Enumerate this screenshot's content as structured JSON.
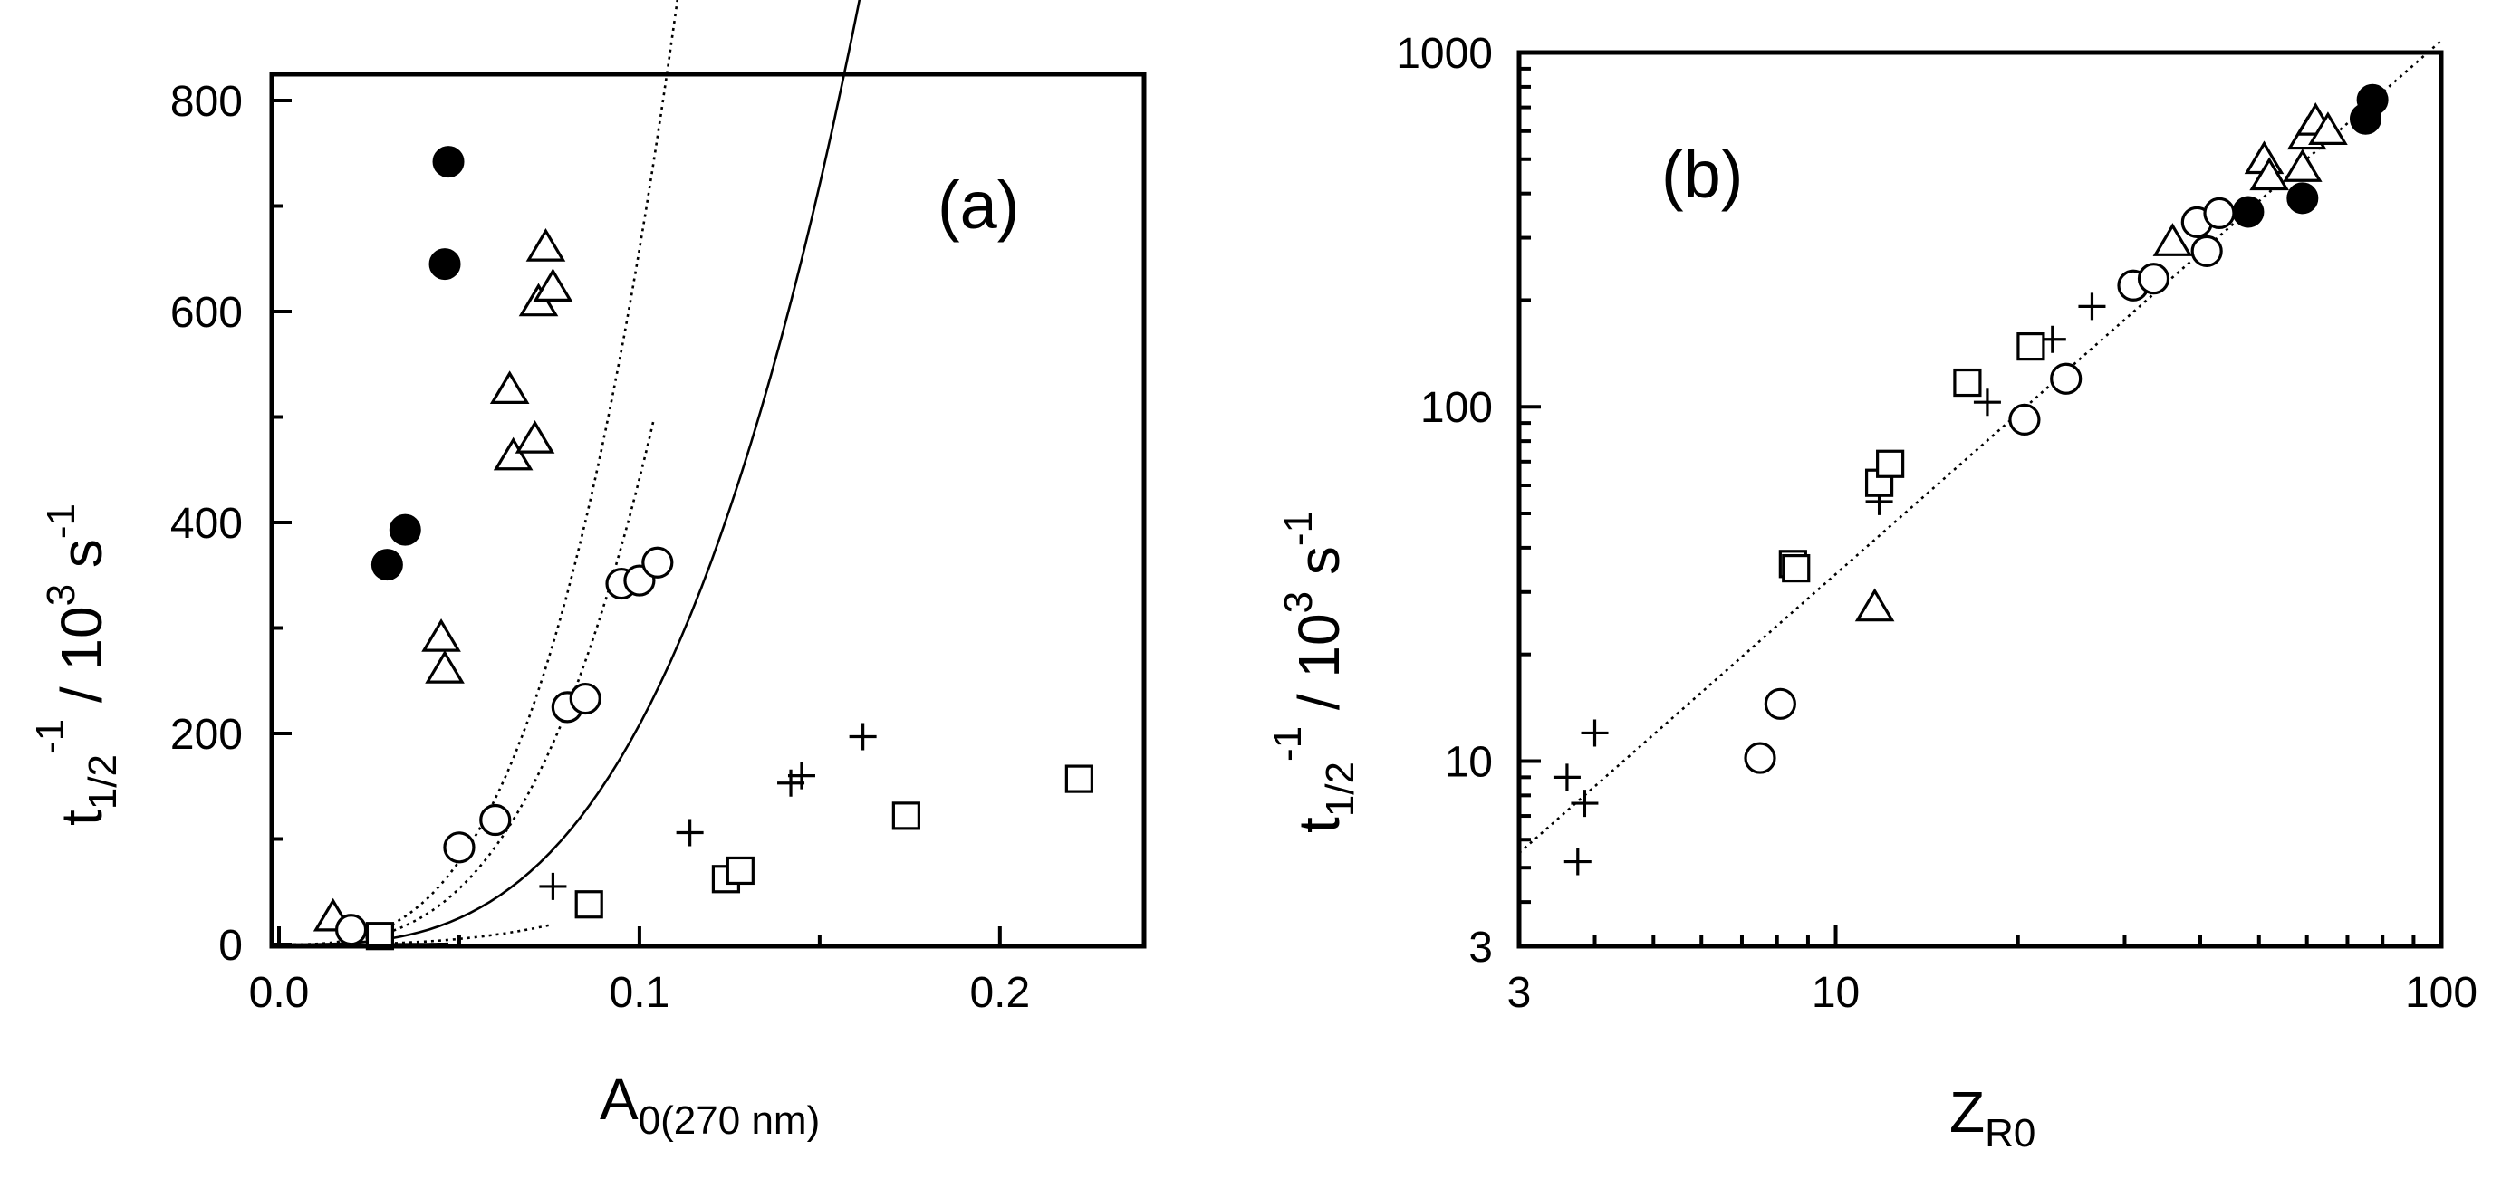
{
  "chart_data": [
    {
      "type": "scatter",
      "panel": "(a)",
      "xlabel": "A",
      "xlabel_sub": "0(270 nm)",
      "ylabel": "t",
      "ylabel_sub": "1/2",
      "ylabel_sup": "-1",
      "ylabel_rest": " / 10",
      "ylabel_sup2": "3",
      "ylabel_unit": " s",
      "ylabel_sup3": "-1",
      "xlim": [
        0.0,
        0.24
      ],
      "ylim": [
        0,
        800
      ],
      "xticks": [
        0.0,
        0.1,
        0.2
      ],
      "xtick_labels": [
        "0.0",
        "0.1",
        "0.2"
      ],
      "yticks": [
        0,
        200,
        400,
        600,
        800
      ],
      "ytick_labels": [
        "0",
        "200",
        "400",
        "600",
        "800"
      ],
      "series": [
        {
          "name": "filled circle",
          "marker": "filled-circle",
          "x": [
            0.03,
            0.035,
            0.046,
            0.047
          ],
          "y": [
            360,
            393,
            645,
            742
          ],
          "fit": {
            "style": "solid",
            "x0": 0.0,
            "x1": 0.047,
            "k": 5.2e-06,
            "p": 3.06
          }
        },
        {
          "name": "open triangle",
          "marker": "triangle",
          "x": [
            0.015,
            0.045,
            0.046,
            0.064,
            0.065,
            0.071,
            0.072,
            0.074,
            0.076
          ],
          "y": [
            25,
            290,
            260,
            525,
            462,
            478,
            608,
            660,
            622
          ],
          "fit": {
            "style": "dotted",
            "x0": 0.0,
            "x1": 0.075,
            "k": 3.35e-05,
            "p": 3.06
          }
        },
        {
          "name": "open circle",
          "marker": "circle",
          "x": [
            0.02,
            0.05,
            0.06,
            0.08,
            0.085,
            0.095,
            0.1,
            0.105
          ],
          "y": [
            14,
            92,
            118,
            225,
            233,
            342,
            345,
            362
          ],
          "fit": {
            "style": "dotted",
            "x0": 0.0,
            "x1": 0.104,
            "k": 0.000335,
            "p": 3.06
          }
        },
        {
          "name": "plus",
          "marker": "plus",
          "x": [
            0.076,
            0.114,
            0.142,
            0.145,
            0.162
          ],
          "y": [
            55,
            106,
            153,
            160,
            197
          ],
          "fit": {
            "style": "dotted",
            "x0": 0.0,
            "x1": 0.163,
            "k": 0.0005,
            "p": 3.06
          }
        },
        {
          "name": "open square",
          "marker": "square",
          "x": [
            0.028,
            0.086,
            0.124,
            0.128,
            0.174,
            0.222
          ],
          "y": [
            8,
            38,
            62,
            70,
            122,
            157
          ],
          "fit": {
            "style": "solid",
            "x0": 0.0,
            "x1": 0.223,
            "k": 0.000158,
            "p": 3.06
          }
        }
      ]
    },
    {
      "type": "scatter",
      "panel": "(b)",
      "xscale": "log",
      "yscale": "log",
      "xlabel": "Z",
      "xlabel_sub": "R0",
      "ylabel": "t",
      "ylabel_sub": "1/2",
      "ylabel_sup": "-1",
      "ylabel_rest": " / 10",
      "ylabel_sup2": "3",
      "ylabel_unit": " s",
      "ylabel_sup3": "-1",
      "xlim": [
        3,
        100
      ],
      "ylim": [
        3,
        1000
      ],
      "xticks": [
        3,
        10,
        100
      ],
      "xtick_labels": [
        "3",
        "10",
        "100"
      ],
      "yticks": [
        3,
        10,
        100,
        1000
      ],
      "ytick_labels": [
        "3",
        "10",
        "100",
        "1000"
      ],
      "reference_line": {
        "style": "dotted",
        "x": [
          3,
          100
        ],
        "y": [
          5.5,
          1080
        ]
      },
      "series": [
        {
          "name": "filled circle",
          "marker": "filled-circle",
          "x": [
            48,
            59,
            75,
            77
          ],
          "y": [
            355,
            388,
            650,
            735
          ]
        },
        {
          "name": "open triangle",
          "marker": "triangle",
          "x": [
            11.6,
            36,
            51,
            52,
            59,
            60,
            62,
            65
          ],
          "y": [
            27,
            290,
            495,
            445,
            470,
            580,
            635,
            598
          ]
        },
        {
          "name": "open circle",
          "marker": "circle",
          "x": [
            7.5,
            8.1,
            20.5,
            24,
            31,
            33.5,
            39.5,
            41,
            43
          ],
          "y": [
            10.2,
            14.5,
            92,
            120,
            220,
            230,
            332,
            275,
            352
          ]
        },
        {
          "name": "plus",
          "marker": "plus",
          "x": [
            3.6,
            3.75,
            3.85,
            4.0,
            11.8,
            17.8,
            22.8,
            26.5
          ],
          "y": [
            9.0,
            5.2,
            7.6,
            12,
            54,
            103,
            155,
            192
          ]
        },
        {
          "name": "open square",
          "marker": "square",
          "x": [
            8.5,
            8.6,
            11.8,
            12.3,
            16.5,
            21
          ],
          "y": [
            36,
            35,
            61,
            69,
            117,
            148
          ]
        }
      ]
    }
  ]
}
